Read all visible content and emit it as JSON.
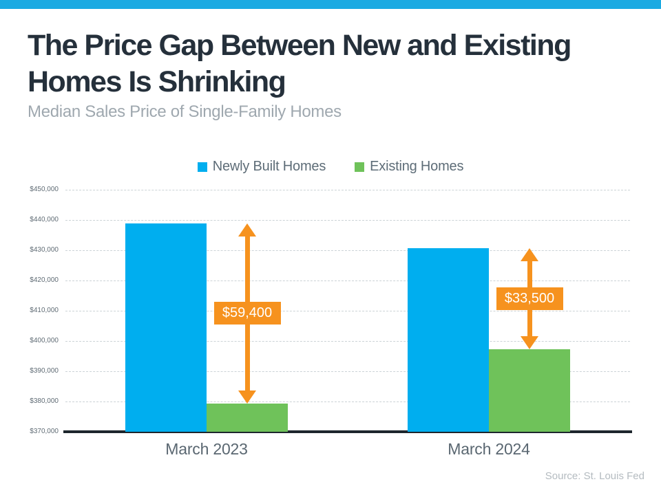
{
  "colors": {
    "accent_bar": "#1BAAE2",
    "newly_built_blue": "#00AEEF",
    "existing_green": "#6FC25A",
    "gap_orange": "#F6921E",
    "title_navy": "#25303B",
    "axis_dark": "#1D262D"
  },
  "header": {
    "title_lines": [
      "The Price Gap Between New and Existing",
      "Homes Is Shrinking"
    ],
    "subtitle": "Median Sales Price of Single-Family Homes"
  },
  "legend": {
    "items": [
      {
        "label": "Newly Built Homes",
        "color": "#00AEEF"
      },
      {
        "label": "Existing Homes",
        "color": "#6FC25A"
      }
    ]
  },
  "chart_data": {
    "type": "bar",
    "title": "The Price Gap Between New and Existing Homes Is Shrinking",
    "subtitle": "Median Sales Price of Single-Family Homes",
    "categories": [
      "March 2023",
      "March 2024"
    ],
    "series": [
      {
        "name": "Newly Built Homes",
        "color": "#00AEEF",
        "values": [
          438800,
          430700
        ]
      },
      {
        "name": "Existing Homes",
        "color": "#6FC25A",
        "values": [
          379400,
          397200
        ]
      }
    ],
    "gap_annotations": [
      {
        "category": "March 2023",
        "label": "$59,400",
        "value": 59400
      },
      {
        "category": "March 2024",
        "label": "$33,500",
        "value": 33500
      }
    ],
    "ylim": [
      370000,
      450000
    ],
    "y_tick_step": 10000,
    "y_ticks": [
      "$450,000",
      "$440,000",
      "$430,000",
      "$420,000",
      "$410,000",
      "$400,000",
      "$390,000",
      "$380,000",
      "$370,000"
    ],
    "grid": "horizontal-dashed",
    "legend_position": "top-center"
  },
  "footer": {
    "source": "Source: St. Louis Fed"
  }
}
